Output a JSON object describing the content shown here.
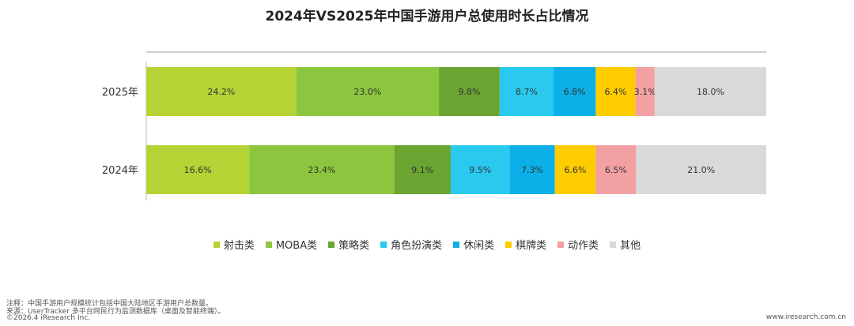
{
  "chart_data": {
    "type": "bar",
    "orientation": "horizontal",
    "stacked": true,
    "title": "2024年VS2025年中国手游用户总使用时长占比情况",
    "categories": [
      "2025年",
      "2024年"
    ],
    "unit": "%",
    "xlim": [
      0,
      100
    ],
    "series": [
      {
        "name": "射击类",
        "color": "#b5d334",
        "values": [
          24.2,
          16.6
        ]
      },
      {
        "name": "MOBA类",
        "color": "#8cc63f",
        "values": [
          23.0,
          23.4
        ]
      },
      {
        "name": "策略类",
        "color": "#6aa532",
        "values": [
          9.8,
          9.1
        ]
      },
      {
        "name": "角色扮演类",
        "color": "#29c9f0",
        "values": [
          8.7,
          9.5
        ]
      },
      {
        "name": "休闲类",
        "color": "#0bb0e8",
        "values": [
          6.8,
          7.3
        ]
      },
      {
        "name": "棋牌类",
        "color": "#ffcc00",
        "values": [
          6.4,
          6.6
        ]
      },
      {
        "name": "动作类",
        "color": "#f3a0a3",
        "values": [
          3.1,
          6.5
        ]
      },
      {
        "name": "其他",
        "color": "#d9d9d9",
        "values": [
          18.0,
          21.0
        ]
      }
    ],
    "legend_position": "bottom",
    "grid": false
  },
  "footnotes": {
    "note": "注释：中国手游用户规模统计包括中国大陆地区手游用户总数量。",
    "source": "来源：UserTracker 多平台网民行为监测数据库（桌面及智能终端）。",
    "copyright": "©2026.4 iResearch Inc.",
    "site": "www.iresearch.com.cn"
  }
}
